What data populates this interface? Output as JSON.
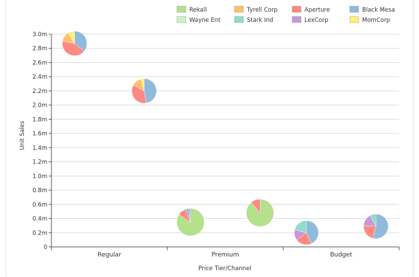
{
  "chart_data": {
    "type": "scatter",
    "subtype": "pie-bubble",
    "xlabel": "Price Tier/Channel",
    "ylabel": "Unit Sales",
    "categories": [
      "Regular",
      "Premium",
      "Budget"
    ],
    "ylim": [
      0,
      3.0
    ],
    "ytick_step": 0.2,
    "ytick_labels": [
      "0",
      "0.2m",
      "0.4m",
      "0.6m",
      "0.8m",
      "1.0m",
      "1.2m",
      "1.4m",
      "1.6m",
      "1.8m",
      "2.0m",
      "2.2m",
      "2.4m",
      "2.6m",
      "2.8m",
      "3.0m"
    ],
    "grid": true,
    "legend_position": "top",
    "legend": [
      {
        "name": "Rekall",
        "color": "#b5e08c"
      },
      {
        "name": "Tyrell Corp",
        "color": "#fdbf6f"
      },
      {
        "name": "Aperture",
        "color": "#fb8a82"
      },
      {
        "name": "Black Mesa",
        "color": "#8fbadb"
      },
      {
        "name": "Wayne Ent",
        "color": "#cdefc8"
      },
      {
        "name": "Stark Ind",
        "color": "#8fdccb"
      },
      {
        "name": "LexCorp",
        "color": "#c997d6"
      },
      {
        "name": "MomCorp",
        "color": "#fff07a"
      }
    ],
    "points": [
      {
        "category": "Regular",
        "offset": -0.15,
        "y": 2.87,
        "r": 0.9,
        "slices": [
          {
            "series": "Black Mesa",
            "value": 36
          },
          {
            "series": "Aperture",
            "value": 42
          },
          {
            "series": "Tyrell Corp",
            "value": 13
          },
          {
            "series": "MomCorp",
            "value": 9
          }
        ]
      },
      {
        "category": "Regular",
        "offset": 0.15,
        "y": 2.2,
        "r": 0.9,
        "slices": [
          {
            "series": "Black Mesa",
            "value": 47
          },
          {
            "series": "Aperture",
            "value": 36
          },
          {
            "series": "Tyrell Corp",
            "value": 13
          },
          {
            "series": "MomCorp",
            "value": 4
          }
        ]
      },
      {
        "category": "Premium",
        "offset": -0.15,
        "y": 0.35,
        "r": 1.0,
        "slices": [
          {
            "series": "Rekall",
            "value": 84
          },
          {
            "series": "Aperture",
            "value": 10
          },
          {
            "series": "Black Mesa",
            "value": 4
          },
          {
            "series": "LexCorp",
            "value": 2
          }
        ]
      },
      {
        "category": "Premium",
        "offset": 0.15,
        "y": 0.48,
        "r": 1.0,
        "slices": [
          {
            "series": "Rekall",
            "value": 89
          },
          {
            "series": "Aperture",
            "value": 11
          }
        ]
      },
      {
        "category": "Budget",
        "offset": -0.15,
        "y": 0.2,
        "r": 0.88,
        "slices": [
          {
            "series": "Black Mesa",
            "value": 43
          },
          {
            "series": "Aperture",
            "value": 22
          },
          {
            "series": "LexCorp",
            "value": 14
          },
          {
            "series": "Stark Ind",
            "value": 21
          }
        ]
      },
      {
        "category": "Budget",
        "offset": 0.15,
        "y": 0.29,
        "r": 0.9,
        "slices": [
          {
            "series": "Black Mesa",
            "value": 54
          },
          {
            "series": "Aperture",
            "value": 22
          },
          {
            "series": "LexCorp",
            "value": 16
          },
          {
            "series": "Stark Ind",
            "value": 8
          }
        ]
      }
    ]
  }
}
